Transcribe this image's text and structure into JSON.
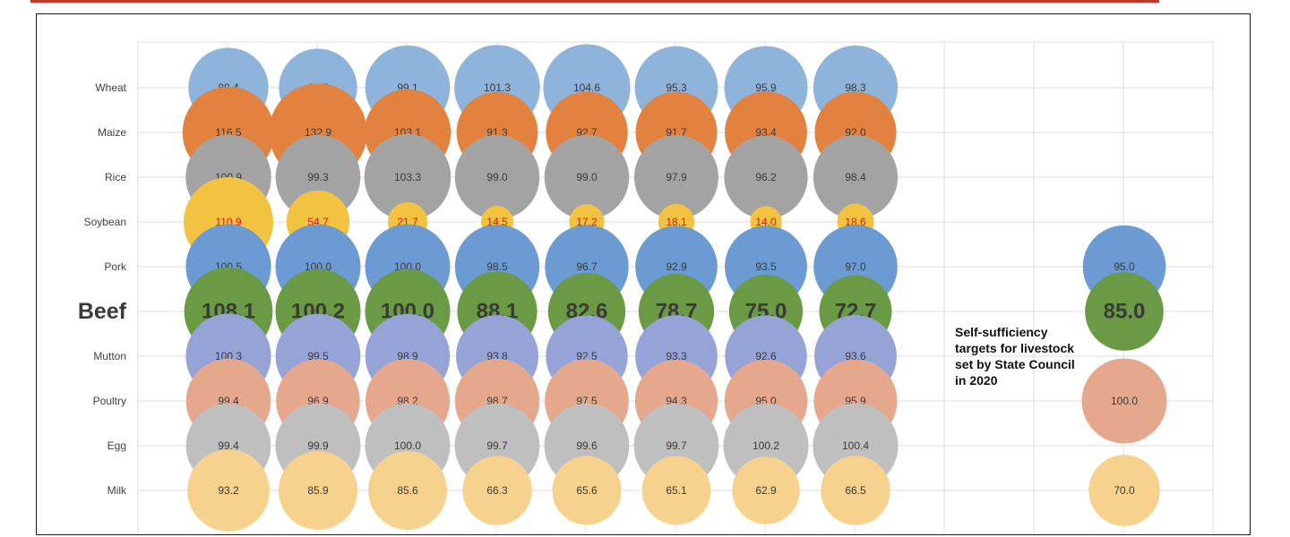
{
  "note": "Self-sufficiency targets  for livestock set by State Council in 2020",
  "chart_data": {
    "type": "bubble",
    "title": "",
    "xlabel": "",
    "ylabel": "",
    "grid": true,
    "highlight_category": "Beef",
    "categories": [
      "Wheat",
      "Maize",
      "Rice",
      "Soybean",
      "Pork",
      "Beef",
      "Mutton",
      "Poultry",
      "Egg",
      "Milk"
    ],
    "colors": {
      "Wheat": "#8fb4dc",
      "Maize": "#e2823e",
      "Rice": "#a3a3a3",
      "Soybean": "#f3c241",
      "Pork": "#6b9bd2",
      "Beef": "#6a9a44",
      "Mutton": "#95a3d6",
      "Poultry": "#e6a88c",
      "Egg": "#bfbfbf",
      "Milk": "#f6d28e"
    },
    "label_colors": {
      "Soybean": "#e8101a"
    },
    "series": [
      {
        "values": [
          88.4,
          116.5,
          100.9,
          110.9,
          100.5,
          108.1,
          100.3,
          99.4,
          99.4,
          93.2
        ]
      },
      {
        "values": [
          84.5,
          132.9,
          99.3,
          54.7,
          100.0,
          100.2,
          99.5,
          96.9,
          99.9,
          85.9
        ]
      },
      {
        "values": [
          99.1,
          103.1,
          103.3,
          21.7,
          100.0,
          100.0,
          98.9,
          98.2,
          100.0,
          85.6
        ]
      },
      {
        "values": [
          101.3,
          91.3,
          99.0,
          14.5,
          98.5,
          88.1,
          93.8,
          98.7,
          99.7,
          66.3
        ]
      },
      {
        "values": [
          104.6,
          92.7,
          99.0,
          17.2,
          96.7,
          82.6,
          92.5,
          97.5,
          99.6,
          65.6
        ]
      },
      {
        "values": [
          95.3,
          91.7,
          97.9,
          18.1,
          92.9,
          78.7,
          93.3,
          94.3,
          99.7,
          65.1
        ]
      },
      {
        "values": [
          95.9,
          93.4,
          96.2,
          14.0,
          93.5,
          75.0,
          92.6,
          95.0,
          100.2,
          62.9
        ]
      },
      {
        "values": [
          98.3,
          92.0,
          98.4,
          18.6,
          97.0,
          72.7,
          93.6,
          95.9,
          100.4,
          66.5
        ]
      }
    ],
    "targets": [
      {
        "category": "Pork",
        "value": 95.0,
        "label": "95.0"
      },
      {
        "category": "Beef",
        "value": 85.0,
        "label": "85.0"
      },
      {
        "category": "Poultry",
        "value": 100.0,
        "label": "100.0"
      },
      {
        "category": "Milk",
        "value": 70.0,
        "label": "70.0"
      }
    ]
  }
}
